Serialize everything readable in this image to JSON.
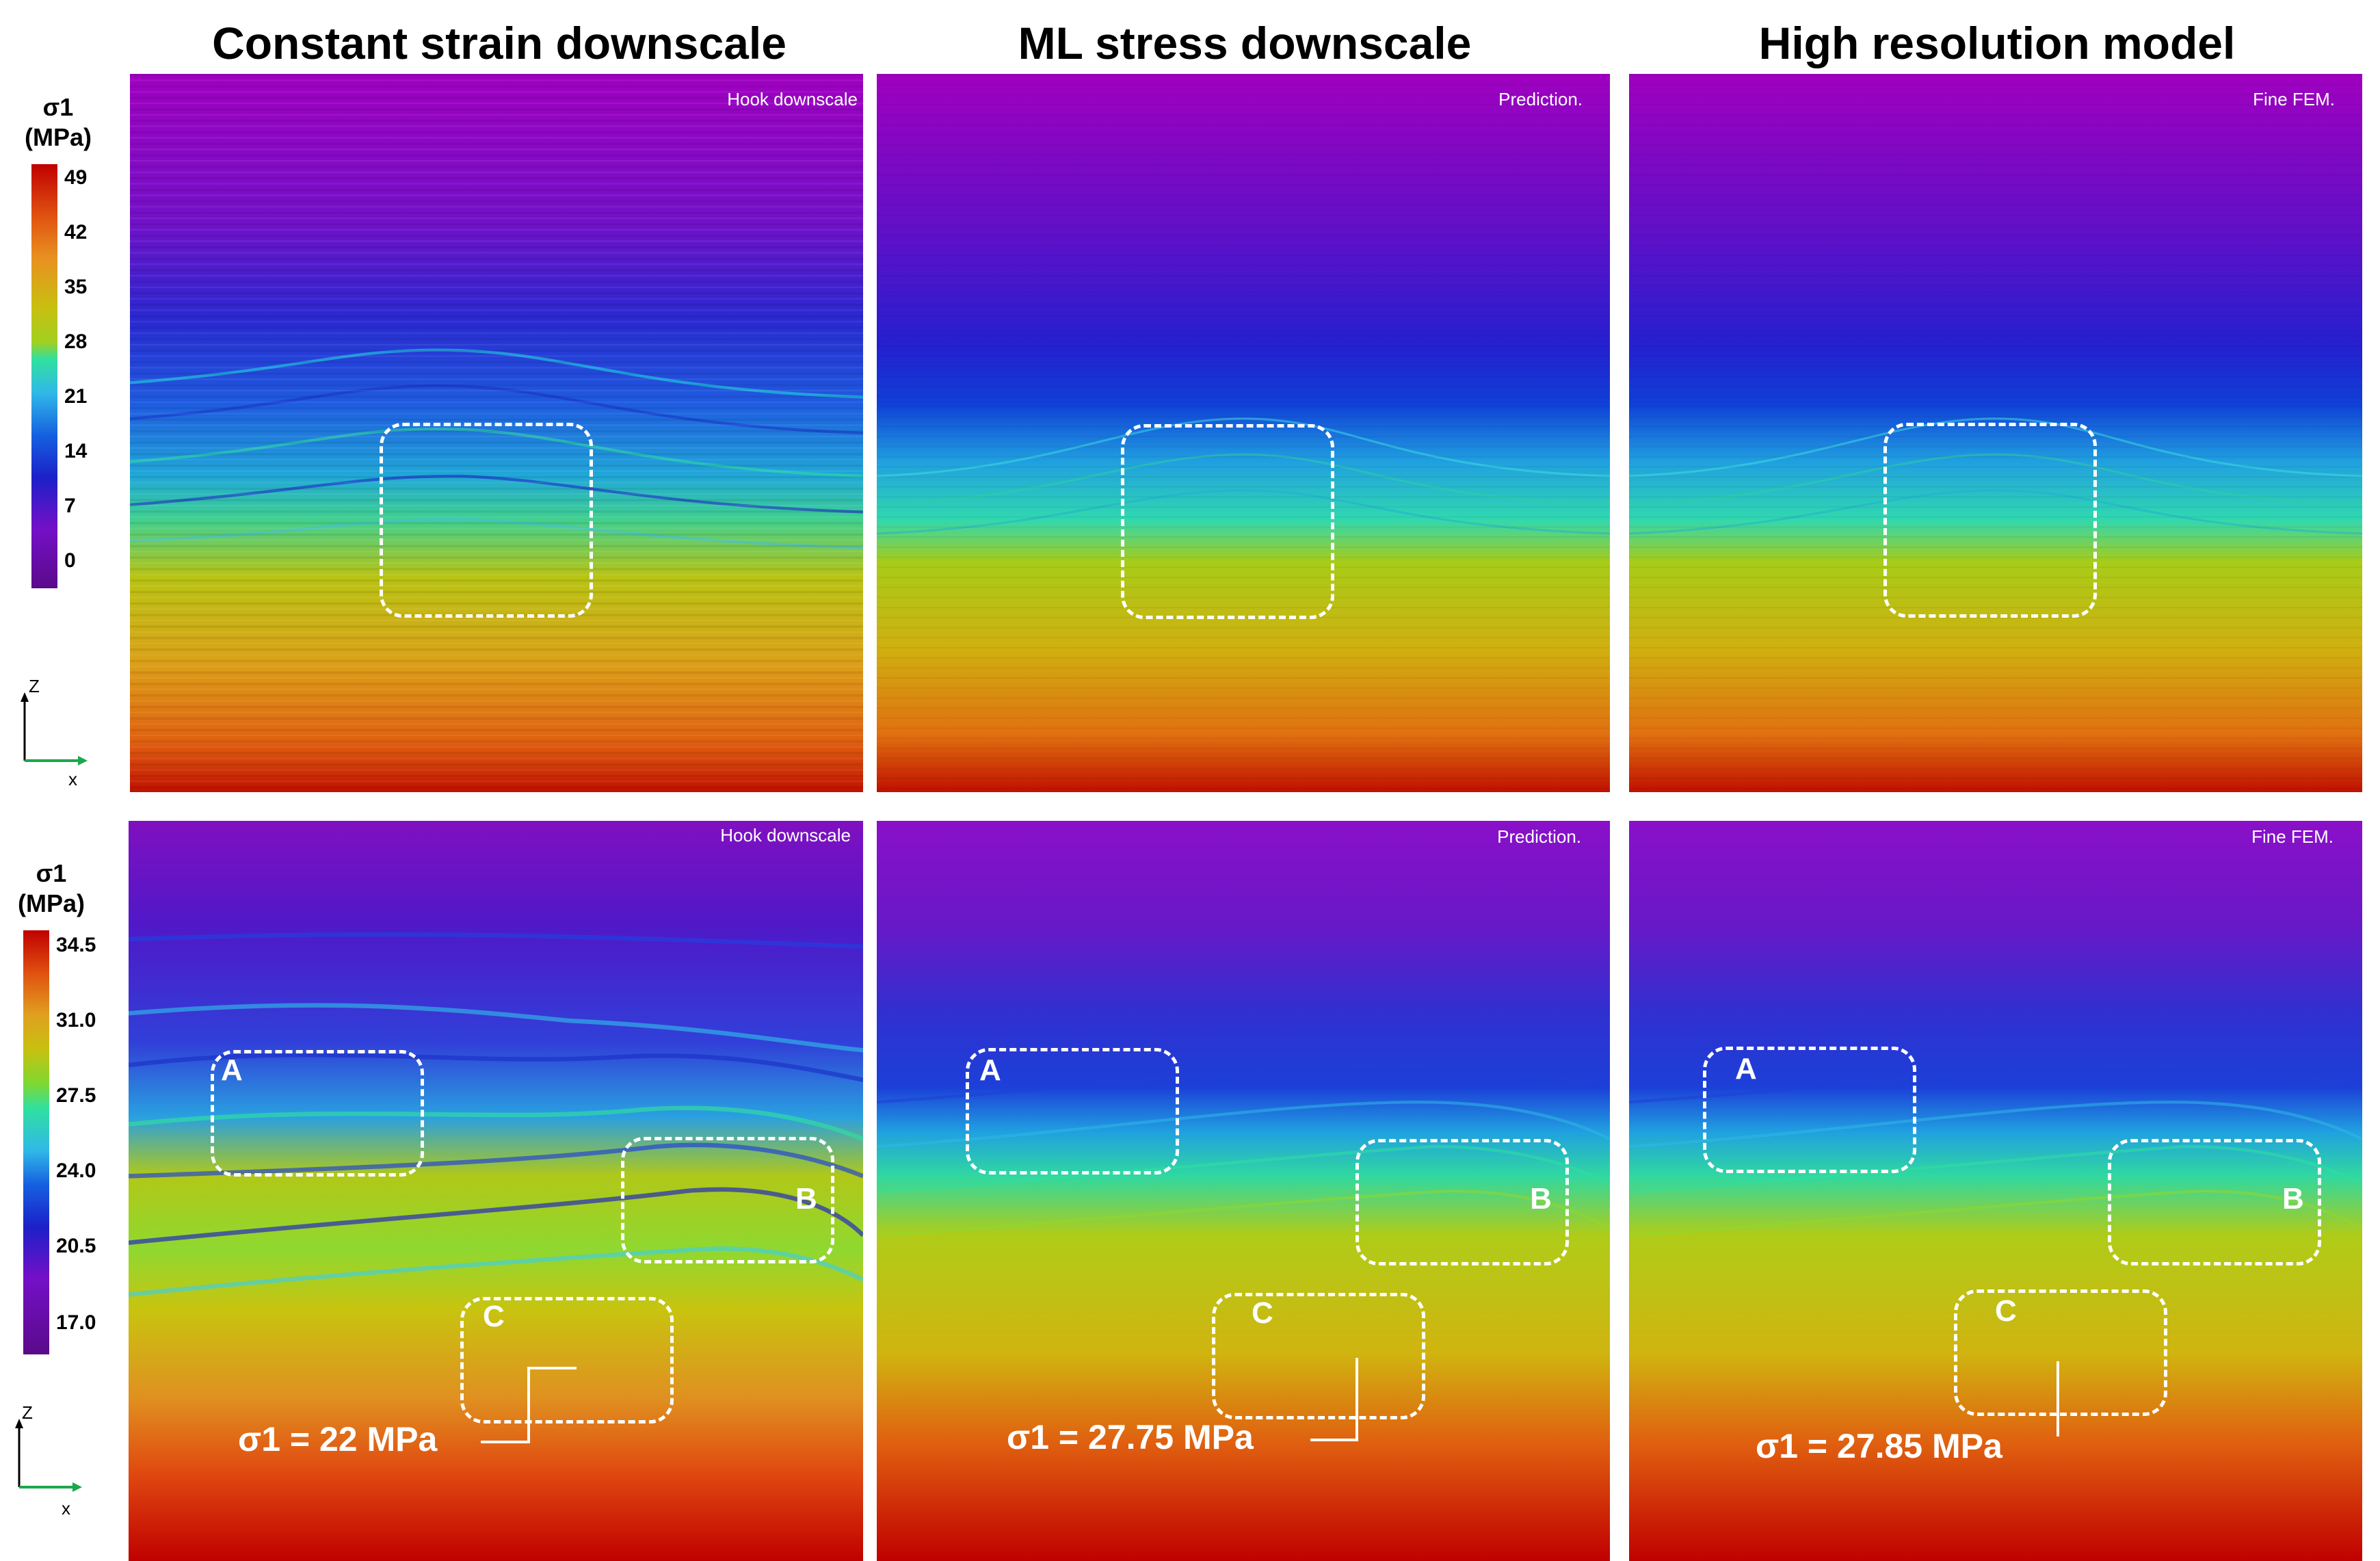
{
  "columns": [
    {
      "title": "Constant strain downscale"
    },
    {
      "title": "ML stress downscale"
    },
    {
      "title": "High resolution model"
    }
  ],
  "rows": [
    {
      "panel_tags": [
        "Hook downscale",
        "Prediction.",
        "Fine FEM."
      ],
      "colorbar": {
        "title_line1": "σ1",
        "title_line2": "(MPa)",
        "ticks": [
          "49",
          "42",
          "35",
          "28",
          "21",
          "14",
          "7",
          "0"
        ]
      }
    },
    {
      "panel_tags": [
        "Hook downscale",
        "Prediction.",
        "Fine FEM."
      ],
      "colorbar": {
        "title_line1": "σ1",
        "title_line2": "(MPa)",
        "ticks": [
          "34.5",
          "31.0",
          "27.5",
          "24.0",
          "20.5",
          "17.0"
        ]
      },
      "zone_labels": [
        "A",
        "B",
        "C"
      ],
      "sigma_callouts": [
        "σ1 = 22 MPa",
        "σ1 = 27.75 MPa",
        "σ1 = 27.85 MPa"
      ]
    }
  ],
  "axes": {
    "z": "Z",
    "x": "x"
  },
  "colormap": [
    "#c00000",
    "#e05010",
    "#e89020",
    "#c8c010",
    "#a0d020",
    "#30e0a0",
    "#30b8e8",
    "#1560e0",
    "#1c20c8",
    "#7410c8",
    "#a000c0"
  ]
}
